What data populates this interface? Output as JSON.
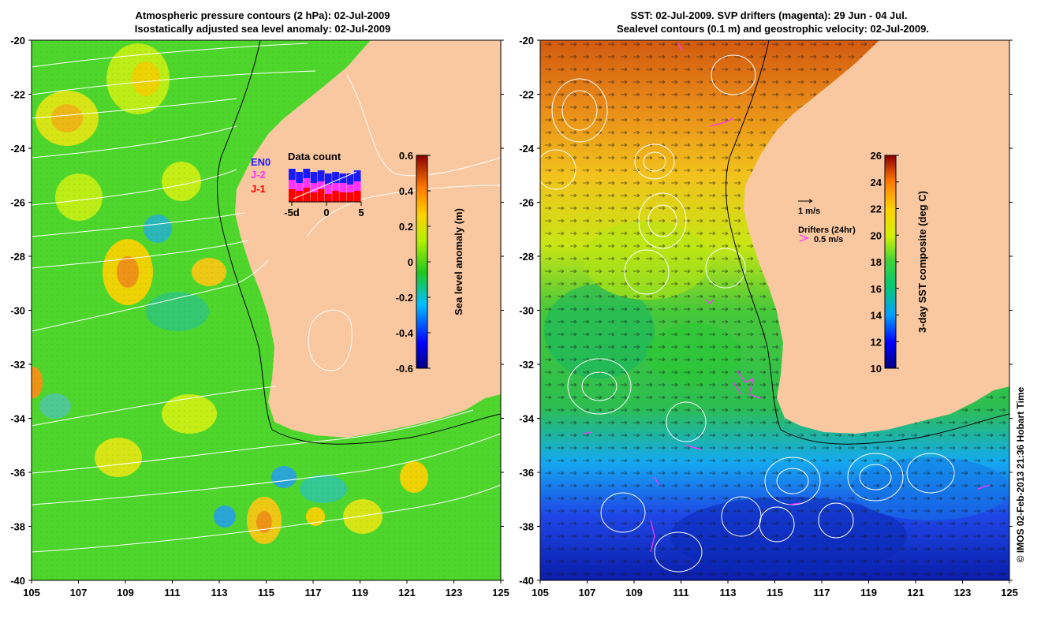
{
  "left_panel": {
    "title_line1": "Atmospheric pressure contours (2 hPa): 02-Jul-2009",
    "title_line2": "Isostatically adjusted sea level anomaly: 02-Jul-2009",
    "colorbar": {
      "label": "Sea level anomaly (m)",
      "ticks": [
        "0.6",
        "0.4",
        "0.2",
        "0",
        "-0.2",
        "-0.4",
        "-0.6"
      ],
      "range": [
        -0.6,
        0.6
      ]
    },
    "data_count": {
      "title": "Data count",
      "legend": [
        {
          "label": "EN0",
          "color": "#1a1aff"
        },
        {
          "label": "J-2",
          "color": "#ff33ff"
        },
        {
          "label": "J-1",
          "color": "#ff0000"
        }
      ],
      "x_ticks": [
        "-5d",
        "0",
        "5"
      ]
    }
  },
  "right_panel": {
    "title_line1": "SST: 02-Jul-2009. SVP drifters (magenta): 29 Jun - 04 Jul.",
    "title_line2": "Sealevel contours (0.1 m) and geostrophic velocity: 02-Jul-2009.",
    "colorbar": {
      "label": "3-day SST composite (deg C)",
      "ticks": [
        "26",
        "24",
        "22",
        "20",
        "18",
        "16",
        "14",
        "12",
        "10"
      ],
      "range": [
        10,
        26
      ]
    },
    "scale_arrow_label": "1 m/s",
    "drifters_title": "Drifters (24hr)",
    "drifters_scale_label": "0.5 m/s"
  },
  "axes": {
    "y_ticks": [
      "-20",
      "-22",
      "-24",
      "-26",
      "-28",
      "-30",
      "-32",
      "-34",
      "-36",
      "-38",
      "-40"
    ],
    "x_ticks": [
      "105",
      "107",
      "109",
      "111",
      "113",
      "115",
      "117",
      "119",
      "121",
      "123",
      "125"
    ]
  },
  "credit": "© IMOS 02-Feb-2013 21:36 Hobart Time",
  "colors": {
    "land": "#fac8a0",
    "ocean_green": "#4fd62c",
    "contour": "#ffffff",
    "drifter": "#ff33ff"
  }
}
